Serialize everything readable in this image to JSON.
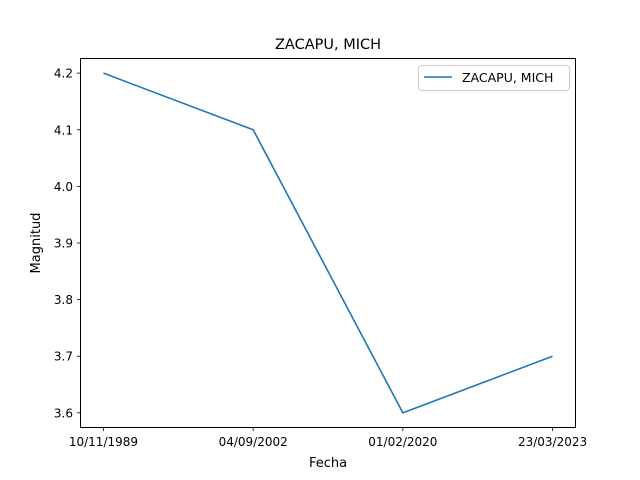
{
  "chart_data": {
    "type": "line",
    "title": "ZACAPU, MICH",
    "xlabel": "Fecha",
    "ylabel": "Magnitud",
    "categories": [
      "10/11/1989",
      "04/09/2002",
      "01/02/2020",
      "23/03/2023"
    ],
    "series": [
      {
        "name": "ZACAPU, MICH",
        "values": [
          4.2,
          4.1,
          3.6,
          3.7
        ],
        "color": "#1f77b4"
      }
    ],
    "ylim": [
      3.575,
      4.225
    ],
    "yticks": [
      3.6,
      3.7,
      3.8,
      3.9,
      4.0,
      4.1,
      4.2
    ],
    "grid": false,
    "legend": "top-right"
  }
}
